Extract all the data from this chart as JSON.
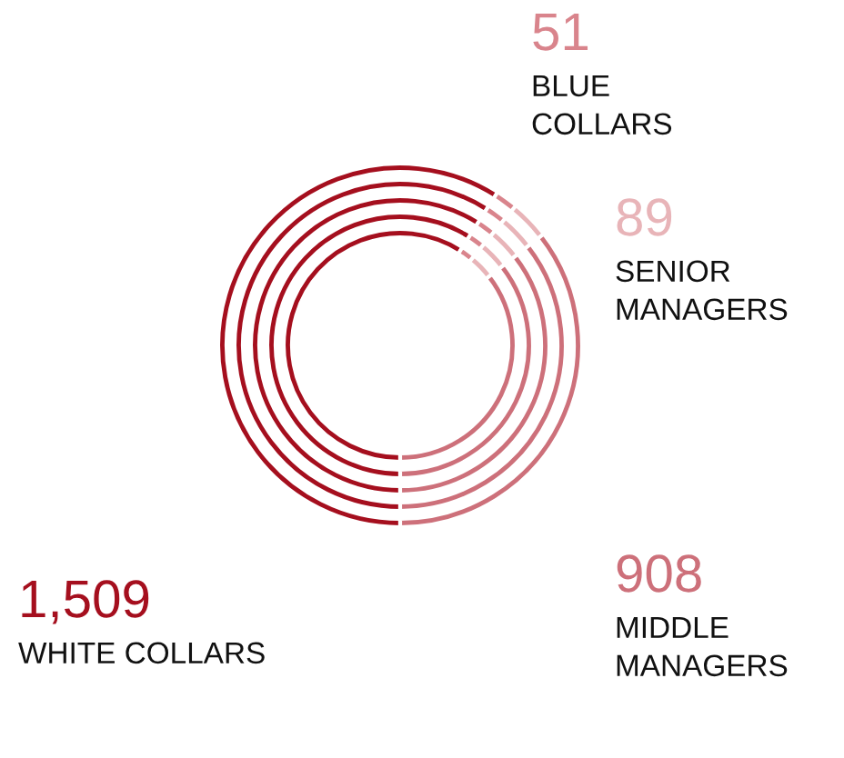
{
  "chart_data": {
    "type": "donut",
    "categories": [
      "WHITE COLLARS",
      "BLUE COLLARS",
      "SENIOR MANAGERS",
      "MIDDLE MANAGERS"
    ],
    "series": [
      {
        "values": [
          1509,
          51,
          89,
          908
        ],
        "value_labels": [
          "1,509",
          "51",
          "89",
          "908"
        ]
      },
      {
        "values": [
          59.0,
          2.0,
          3.5,
          35.5
        ]
      },
      {
        "values": [
          59.0,
          2.0,
          3.5,
          35.5
        ]
      },
      {
        "values": [
          59.0,
          2.0,
          3.5,
          35.5
        ]
      },
      {
        "values": [
          59.0,
          2.0,
          3.5,
          35.5
        ]
      }
    ],
    "legend": false,
    "colors": [
      "#a50f1e",
      "#d9848c",
      "#e8b4b8",
      "#cd707a"
    ]
  }
}
